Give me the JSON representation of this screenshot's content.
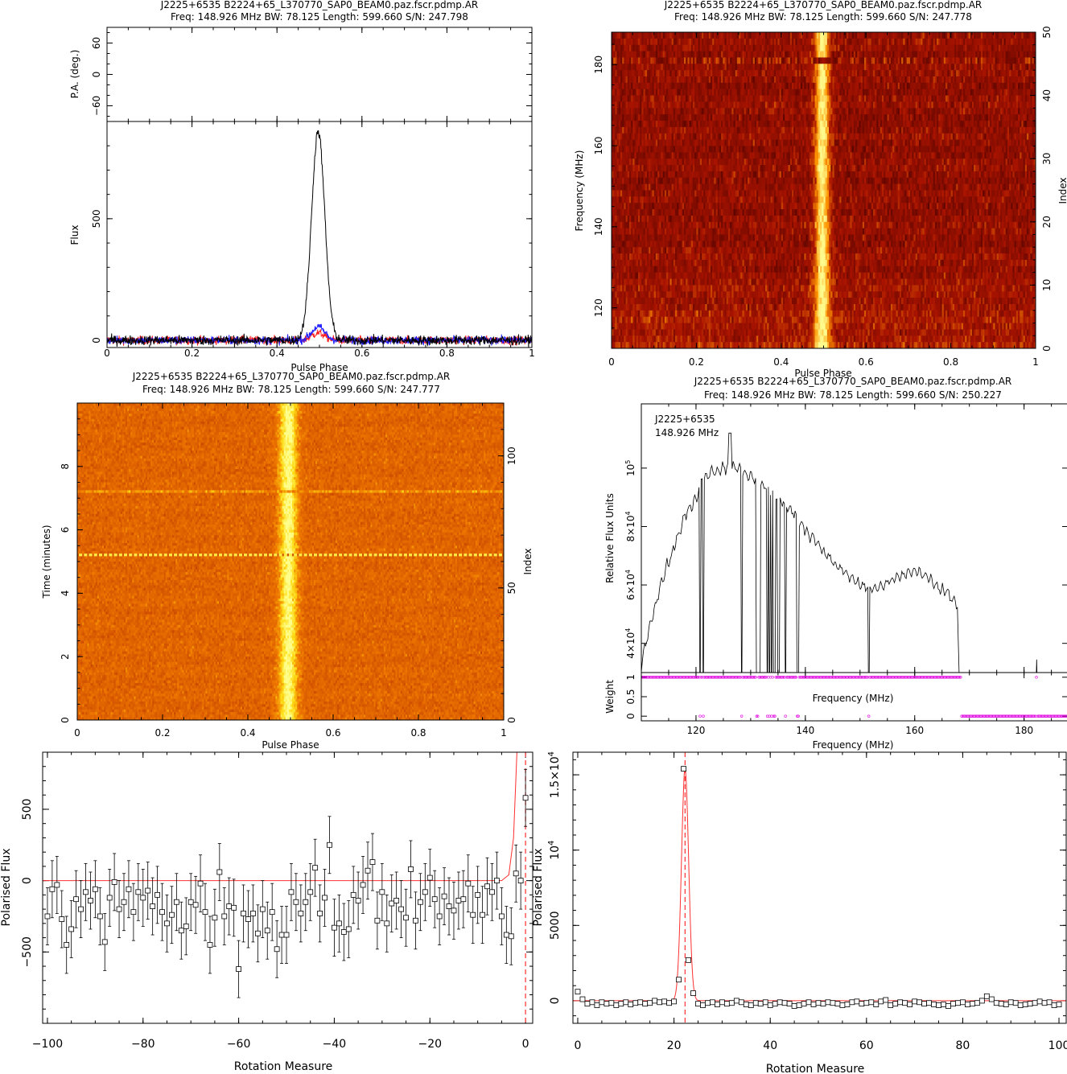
{
  "chart_data": [
    {
      "id": "profile",
      "type": "line",
      "title": "J2225+6535  B2224+65_L370770_SAP0_BEAM0.paz.fscr.pdmp.AR",
      "subtitle": "Freq: 148.926 MHz BW: 78.125 Length: 599.660 S/N: 247.798",
      "xlabel": "Pulse Phase",
      "xlim": [
        0,
        1
      ],
      "xticks": [
        0,
        0.2,
        0.4,
        0.6,
        0.8,
        1
      ],
      "xtick_labels": [
        "0",
        "0.2",
        "0.4",
        "0.6",
        "0.8",
        "1"
      ],
      "pa_panel": {
        "ylabel": "P.A. (deg.)",
        "ylim": [
          -90,
          90
        ],
        "yticks": [
          -60,
          0,
          60
        ],
        "ytick_labels": [
          "−60",
          "0",
          "60"
        ]
      },
      "flux_panel": {
        "ylabel": "Flux",
        "ylim": [
          -30,
          900
        ],
        "yticks": [
          0,
          500
        ],
        "ytick_labels": [
          "0",
          "500"
        ],
        "peak": {
          "phase": 0.497,
          "width": 0.0155,
          "height": 860
        },
        "series": [
          {
            "color": "#000000",
            "noise": 14,
            "peak_height": 860
          },
          {
            "color": "#ff2020",
            "noise": 12,
            "peak_height": 30
          },
          {
            "color": "#2020ff",
            "noise": 12,
            "peak_height": 55
          }
        ]
      }
    },
    {
      "id": "freq-phase",
      "type": "heatmap",
      "title": "J2225+6535  B2224+65_L370770_SAP0_BEAM0.paz.fscr.pdmp.AR",
      "subtitle": "Freq: 148.926 MHz BW: 78.125 Length: 599.660 S/N: 247.778",
      "xlabel": "Pulse Phase",
      "ylabel": "Frequency (MHz)",
      "ylabel_right": "Index",
      "xlim": [
        0,
        1
      ],
      "ylim": [
        110,
        188
      ],
      "xticks": [
        0,
        0.2,
        0.4,
        0.6,
        0.8,
        1
      ],
      "xtick_labels": [
        "0",
        "0.2",
        "0.4",
        "0.6",
        "0.8",
        "1"
      ],
      "yticks": [
        120,
        140,
        160,
        180
      ],
      "ytick_labels": [
        "120",
        "140",
        "160",
        "180"
      ],
      "yticks_right": [
        0,
        10,
        20,
        30,
        40,
        50
      ],
      "yticks_right_labels": [
        "0",
        "10",
        "20",
        "30",
        "40",
        "50"
      ],
      "index_range": [
        0,
        50
      ],
      "pulse_phase": 0.497,
      "pulse_width": 0.012
    },
    {
      "id": "time-phase",
      "type": "heatmap",
      "title": "J2225+6535  B2224+65_L370770_SAP0_BEAM0.paz.fscr.pdmp.AR",
      "subtitle": "Freq: 148.926 MHz BW: 78.125 Length: 599.660 S/N: 247.777",
      "xlabel": "Pulse Phase",
      "ylabel": "Time (minutes)",
      "ylabel_right": "Index",
      "xlim": [
        0,
        1
      ],
      "ylim": [
        0,
        10
      ],
      "xticks": [
        0,
        0.2,
        0.4,
        0.6,
        0.8,
        1
      ],
      "xtick_labels": [
        "0",
        "0.2",
        "0.4",
        "0.6",
        "0.8",
        "1"
      ],
      "yticks": [
        0,
        2,
        4,
        6,
        8
      ],
      "ytick_labels": [
        "0",
        "2",
        "4",
        "6",
        "8"
      ],
      "yticks_right": [
        0,
        50,
        100
      ],
      "yticks_right_labels": [
        "0",
        "50",
        "100"
      ],
      "index_range": [
        0,
        120
      ],
      "pulse_phase": 0.495,
      "pulse_width": 0.015
    },
    {
      "id": "bandpass",
      "type": "line",
      "title": "J2225+6535  B2224+65_L370770_SAP0_BEAM0.paz.fscr.pdmp.AR",
      "subtitle": "Freq: 148.926 MHz BW: 78.125 Length: 599.660 S/N: 250.227",
      "legend_lines": [
        "J2225+6535",
        "148.926 MHz"
      ],
      "xlabel": "Frequency (MHz)",
      "ylabel": "Relative Flux Units",
      "xlim": [
        110,
        188
      ],
      "ylim": [
        30000,
        122000
      ],
      "xticks": [
        120,
        140,
        160,
        180
      ],
      "xtick_labels": [
        "120",
        "140",
        "160",
        "180"
      ],
      "yticks": [
        40000,
        60000,
        80000,
        100000
      ],
      "ytick_labels": [
        [
          "4",
          "4"
        ],
        [
          "6",
          "4"
        ],
        [
          "8",
          "4"
        ],
        [
          "",
          "5"
        ]
      ],
      "x": [
        110,
        112,
        114,
        116,
        118,
        120,
        121,
        122,
        124,
        126,
        128,
        130,
        132,
        134,
        136,
        138,
        140,
        142,
        144,
        146,
        148,
        150,
        152,
        154,
        156,
        158,
        160,
        162,
        164,
        166,
        168
      ],
      "y": [
        33000,
        50000,
        63000,
        73000,
        84000,
        89000,
        96000,
        98000,
        99500,
        101000,
        100000,
        97000,
        94000,
        92000,
        88000,
        84000,
        79000,
        75000,
        70000,
        66000,
        63000,
        60000,
        58500,
        59500,
        61500,
        63500,
        65000,
        63000,
        59500,
        57000,
        53000
      ],
      "dropouts": [
        120.8,
        121.3,
        128.4,
        131.2,
        131.6,
        133.1,
        133.5,
        133.9,
        134.3,
        135.1,
        136.4,
        138.6,
        151.6
      ],
      "spike": {
        "x": 126.2,
        "y": 112000
      },
      "weight_panel": {
        "ylabel": "Weight",
        "xlabel": "Frequency (MHz)",
        "ylim": [
          0,
          1
        ],
        "yticks": [
          0,
          0.5,
          1
        ],
        "ytick_labels": [
          "0",
          "0.5",
          "1"
        ],
        "zero_weights": [
          120.8,
          121.3,
          128.4,
          131.2,
          133.1,
          133.5,
          133.9,
          134.3,
          136.4,
          138.6,
          151.6
        ],
        "zero_from": 168.5,
        "one_extra": 182.3
      }
    },
    {
      "id": "rm-negative",
      "type": "scatter",
      "xlabel": "Rotation Measure",
      "ylabel": "Polarised Flux",
      "xlim": [
        -101,
        1.5
      ],
      "ylim": [
        -1000,
        900
      ],
      "xticks": [
        -100,
        -80,
        -60,
        -40,
        -20,
        0
      ],
      "xtick_labels": [
        "−100",
        "−80",
        "−60",
        "−40",
        "−20",
        "0"
      ],
      "yticks": [
        -500,
        0,
        500
      ],
      "ytick_labels": [
        "−500",
        "0",
        "500"
      ],
      "marker_line_x": 0,
      "error": 200,
      "x": [
        -100,
        -99,
        -98,
        -97,
        -96,
        -95,
        -94,
        -93,
        -92,
        -91,
        -90,
        -89,
        -88,
        -87,
        -86,
        -85,
        -84,
        -83,
        -82,
        -81,
        -80,
        -79,
        -78,
        -77,
        -76,
        -75,
        -74,
        -73,
        -72,
        -71,
        -70,
        -69,
        -68,
        -67,
        -66,
        -65,
        -64,
        -63,
        -62,
        -61,
        -60,
        -59,
        -58,
        -57,
        -56,
        -55,
        -54,
        -53,
        -52,
        -51,
        -50,
        -49,
        -48,
        -47,
        -46,
        -45,
        -44,
        -43,
        -42,
        -41,
        -40,
        -39,
        -38,
        -37,
        -36,
        -35,
        -34,
        -33,
        -32,
        -31,
        -30,
        -29,
        -28,
        -27,
        -26,
        -25,
        -24,
        -23,
        -22,
        -21,
        -20,
        -19,
        -18,
        -17,
        -16,
        -15,
        -14,
        -13,
        -12,
        -11,
        -10,
        -9,
        -8,
        -7,
        -6,
        -5,
        -4,
        -3,
        -2,
        -1,
        0
      ],
      "y": [
        -250,
        -60,
        -30,
        -270,
        -450,
        -340,
        -130,
        -200,
        -80,
        -140,
        -60,
        -250,
        -430,
        -120,
        -10,
        -200,
        -150,
        -60,
        -220,
        -80,
        -120,
        -70,
        -180,
        -100,
        -220,
        -300,
        -240,
        -150,
        -350,
        -320,
        -150,
        -170,
        -20,
        -220,
        -450,
        -260,
        60,
        -250,
        -180,
        -190,
        -620,
        -230,
        -270,
        -230,
        -370,
        -200,
        -350,
        -220,
        -480,
        -380,
        -380,
        -80,
        -150,
        -230,
        -150,
        -80,
        90,
        -230,
        -120,
        250,
        -330,
        -300,
        -360,
        -340,
        -100,
        -140,
        -30,
        70,
        130,
        -280,
        -80,
        -300,
        -160,
        -140,
        -200,
        -260,
        80,
        -280,
        -150,
        -80,
        20,
        -130,
        -250,
        -110,
        -180,
        -210,
        -140,
        -130,
        -20,
        -240,
        -100,
        -240,
        -40,
        -80,
        0,
        -250,
        -380,
        -390,
        50,
        0,
        580
      ],
      "fit": [
        [
          -101,
          0
        ],
        [
          -5,
          0
        ],
        [
          -3.5,
          40
        ],
        [
          -2.5,
          300
        ],
        [
          -1.8,
          900
        ]
      ]
    },
    {
      "id": "rm-positive",
      "type": "scatter",
      "xlabel": "Rotation Measure",
      "ylabel": "Polarised Flux",
      "xlim": [
        -1,
        101.5
      ],
      "ylim": [
        -1500,
        16500
      ],
      "xticks": [
        0,
        20,
        40,
        60,
        80,
        100
      ],
      "xtick_labels": [
        "0",
        "20",
        "40",
        "60",
        "80",
        "100"
      ],
      "yticks": [
        0,
        5000,
        10000,
        15000
      ],
      "ytick_labels": [
        [
          "0",
          ""
        ],
        [
          "5000",
          ""
        ],
        [
          "10",
          "4"
        ],
        [
          "1.5×10",
          "4"
        ]
      ],
      "marker_line_x": 22.3,
      "peak": {
        "x": 22.3,
        "y": 15400,
        "width": 0.75
      },
      "x": [
        0,
        1,
        2,
        3,
        4,
        5,
        6,
        7,
        8,
        9,
        10,
        11,
        12,
        13,
        14,
        15,
        16,
        17,
        18,
        19,
        20,
        21,
        22,
        23,
        24,
        25,
        26,
        27,
        28,
        29,
        30,
        31,
        32,
        33,
        34,
        35,
        36,
        37,
        38,
        39,
        40,
        41,
        42,
        43,
        44,
        45,
        46,
        47,
        48,
        49,
        50,
        51,
        52,
        53,
        54,
        55,
        56,
        57,
        58,
        59,
        60,
        61,
        62,
        63,
        64,
        65,
        66,
        67,
        68,
        69,
        70,
        71,
        72,
        73,
        74,
        75,
        76,
        77,
        78,
        79,
        80,
        81,
        82,
        83,
        84,
        85,
        86,
        87,
        88,
        89,
        90,
        91,
        92,
        93,
        94,
        95,
        96,
        97,
        98,
        99,
        100
      ],
      "y": [
        600,
        100,
        -200,
        -100,
        -300,
        -100,
        -200,
        -150,
        -300,
        -200,
        -100,
        -250,
        -150,
        -100,
        -200,
        -150,
        0,
        -100,
        -50,
        -150,
        -50,
        1400,
        15400,
        2700,
        500,
        -200,
        -300,
        -150,
        -100,
        -250,
        -100,
        -200,
        -150,
        0,
        -100,
        -250,
        -300,
        -150,
        -200,
        -100,
        -300,
        -200,
        -100,
        -150,
        -200,
        -350,
        -300,
        -200,
        -100,
        -250,
        -150,
        -200,
        -100,
        -150,
        -200,
        -300,
        -250,
        -100,
        -50,
        -200,
        -150,
        -100,
        -250,
        -50,
        50,
        -300,
        -200,
        -100,
        -150,
        -250,
        -50,
        -100,
        -200,
        -150,
        -250,
        -300,
        -250,
        -350,
        -200,
        -150,
        -100,
        -250,
        -200,
        -150,
        0,
        300,
        100,
        -150,
        -200,
        -250,
        -100,
        -150,
        -300,
        -250,
        -200,
        -150,
        -50,
        -150,
        -100,
        -300,
        -250
      ]
    }
  ]
}
